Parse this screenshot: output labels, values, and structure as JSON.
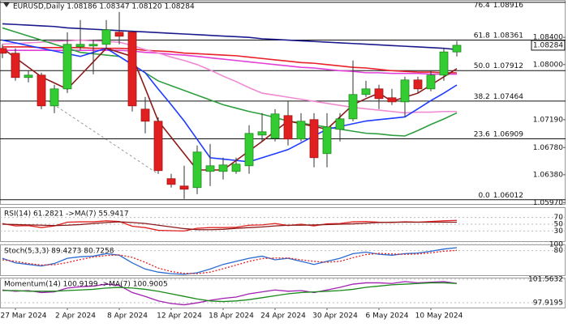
{
  "chart_data": [
    {
      "type": "candlestick",
      "title": "EURUSD,Daily  1.08186 1.08347 1.08120 1.08284",
      "categories": [
        null,
        "27 Mar 2024",
        null,
        null,
        null,
        "2 Apr 2024",
        null,
        null,
        null,
        "8 Apr 2024",
        null,
        null,
        null,
        "12 Apr 2024",
        null,
        null,
        null,
        "18 Apr 2024",
        null,
        null,
        null,
        "24 Apr 2024",
        null,
        null,
        null,
        "30 Apr 2024",
        null,
        null,
        null,
        "6 May 2024",
        null,
        null,
        null,
        "10 May 2024",
        null,
        null
      ],
      "open": [
        1.08238,
        1.08167,
        1.0781,
        1.07845,
        1.07393,
        1.07643,
        1.08262,
        1.08274,
        1.08298,
        1.08476,
        1.08476,
        1.07345,
        1.07167,
        1.06322,
        1.06214,
        1.06191,
        1.06429,
        1.06429,
        1.06429,
        1.06512,
        1.06964,
        1.06917,
        1.0725,
        1.06905,
        1.07191,
        1.06691,
        1.07048,
        1.07202,
        1.0756,
        1.07643,
        1.07512,
        1.07452,
        1.07774,
        1.07643,
        1.07845,
        1.08186
      ],
      "high": [
        1.08298,
        1.08238,
        1.07905,
        1.07881,
        1.07703,
        1.08476,
        1.08655,
        1.08357,
        1.08655,
        1.08774,
        1.085,
        1.07524,
        1.07226,
        1.06393,
        1.06512,
        1.0681,
        1.06833,
        1.06631,
        1.06631,
        1.07107,
        1.07286,
        1.07345,
        1.07464,
        1.07286,
        1.07286,
        1.07286,
        1.07286,
        1.0806,
        1.07762,
        1.07703,
        1.07643,
        1.07822,
        1.07822,
        1.07905,
        1.08238,
        1.08347
      ],
      "low": [
        1.08095,
        1.07762,
        1.07738,
        1.07345,
        1.07286,
        1.07583,
        1.08214,
        1.07857,
        1.08238,
        1.08298,
        1.0731,
        1.06988,
        1.06393,
        1.06191,
        1.06024,
        1.06095,
        1.06214,
        1.0631,
        1.06393,
        1.06393,
        1.06869,
        1.06869,
        1.0681,
        1.06869,
        1.06488,
        1.06488,
        1.06869,
        1.07167,
        1.07524,
        1.07345,
        1.07405,
        1.07226,
        1.07583,
        1.07607,
        1.07762,
        1.0812
      ],
      "close": [
        1.08167,
        1.0781,
        1.07845,
        1.07393,
        1.07643,
        1.08298,
        1.08298,
        1.08298,
        1.08512,
        1.08417,
        1.07393,
        1.07167,
        1.06441,
        1.06238,
        1.06167,
        1.06714,
        1.06512,
        1.06524,
        1.06536,
        1.06988,
        1.07012,
        1.07274,
        1.06905,
        1.07167,
        1.06631,
        1.07083,
        1.07202,
        1.0756,
        1.07643,
        1.075,
        1.07452,
        1.07774,
        1.07643,
        1.07845,
        1.08186,
        1.08284
      ],
      "up_color": "#33cc33",
      "down_color": "#e02020",
      "series": [
        {
          "color": "#1a1a8c",
          "values": [
            1.086,
            1.0859,
            1.0858,
            1.0857,
            1.0856,
            1.0854,
            1.0853,
            1.0852,
            1.0851,
            1.085,
            1.0849,
            1.0848,
            1.0847,
            1.0846,
            1.0845,
            1.0844,
            1.0843,
            1.0842,
            1.0841,
            1.084,
            1.0838,
            1.0837,
            1.0836,
            1.0835,
            1.0834,
            1.0833,
            1.0832,
            1.0831,
            1.083,
            1.0829,
            1.0828,
            1.0827,
            1.0826,
            1.0825,
            1.0824,
            1.0822
          ]
        },
        {
          "color": "#e8202a",
          "values": [
            1.0826,
            1.0826,
            1.0826,
            1.0825,
            1.0825,
            1.0825,
            1.0825,
            1.0824,
            1.0824,
            1.0824,
            1.0823,
            1.0821,
            1.082,
            1.0819,
            1.0817,
            1.0816,
            1.0815,
            1.0814,
            1.0813,
            1.0811,
            1.0809,
            1.0807,
            1.0805,
            1.0803,
            1.0802,
            1.08,
            1.0798,
            1.0796,
            1.0795,
            1.0793,
            1.0791,
            1.079,
            1.0789,
            1.0789,
            1.0788,
            1.0788
          ]
        },
        {
          "color": "#e040d8",
          "values": [
            1.0821,
            1.0821,
            1.0821,
            1.0821,
            1.0821,
            1.0821,
            1.0821,
            1.0821,
            1.0821,
            1.0821,
            1.082,
            1.0818,
            1.0817,
            1.0815,
            1.0814,
            1.0812,
            1.081,
            1.0808,
            1.0806,
            1.0804,
            1.0802,
            1.08,
            1.0798,
            1.0796,
            1.0795,
            1.0793,
            1.0791,
            1.079,
            1.0788,
            1.0788,
            1.0787,
            1.0787,
            1.0787,
            1.0786,
            1.0786,
            1.0786
          ]
        },
        {
          "color": "#f08ad2",
          "values": [
            1.083,
            1.0831,
            1.0832,
            1.0833,
            1.0834,
            1.0835,
            1.0836,
            1.0835,
            1.0834,
            1.0833,
            1.0828,
            1.0822,
            1.0817,
            1.0811,
            1.0806,
            1.08,
            1.0792,
            1.0783,
            1.0775,
            1.0766,
            1.0758,
            1.0755,
            1.0752,
            1.0749,
            1.0746,
            1.0743,
            1.074,
            1.0737,
            1.0735,
            1.0733,
            1.0731,
            1.0729,
            1.073,
            1.073,
            1.0731,
            1.0731
          ]
        },
        {
          "color": "#2e9e3e",
          "values": [
            1.0854,
            1.0848,
            1.0842,
            1.0836,
            1.083,
            1.0824,
            1.0818,
            1.0816,
            1.0814,
            1.0812,
            1.08,
            1.0788,
            1.0776,
            1.0769,
            1.0762,
            1.0755,
            1.0748,
            1.0741,
            1.0736,
            1.0731,
            1.0727,
            1.0722,
            1.0717,
            1.0714,
            1.0711,
            1.0708,
            1.0705,
            1.0702,
            1.0699,
            1.0698,
            1.0696,
            1.0695,
            1.0703,
            1.0712,
            1.072,
            1.0729
          ]
        },
        {
          "color": "#1e3cff",
          "values": [
            1.0836,
            1.0832,
            1.0828,
            1.0824,
            1.082,
            1.0816,
            1.0812,
            1.0818,
            1.0824,
            1.0812,
            1.08,
            1.0788,
            1.0764,
            1.0741,
            1.0717,
            1.069,
            1.0663,
            1.0661,
            1.0659,
            1.0657,
            1.0663,
            1.0669,
            1.0675,
            1.0685,
            1.0695,
            1.0705,
            1.0709,
            1.0713,
            1.0717,
            1.0719,
            1.0721,
            1.0723,
            1.0735,
            1.0747,
            1.0758,
            1.077
          ]
        },
        {
          "color": "#8b1a1a",
          "values": [
            1.0824,
            1.081,
            1.0796,
            1.0782,
            1.0773,
            1.0764,
            1.0784,
            1.0804,
            1.0824,
            1.0818,
            1.0812,
            1.0765,
            1.0717,
            1.0693,
            1.0669,
            1.0645,
            1.0645,
            1.0645,
            1.0659,
            1.0673,
            1.0687,
            1.0702,
            1.0717,
            1.0713,
            1.0709,
            1.0705,
            1.0723,
            1.0741,
            1.075,
            1.0758,
            1.0746,
            1.0752,
            1.0758,
            1.077,
            1.0782,
            1.0794
          ]
        }
      ],
      "ylim": [
        1.0595,
        1.0895
      ],
      "yticks": [
        {
          "value": 1.084,
          "label": "1.08400"
        },
        {
          "value": 1.08,
          "label": "1.08000"
        },
        {
          "value": 1.0719,
          "label": "1.07190"
        },
        {
          "value": 1.0678,
          "label": "1.06780"
        },
        {
          "value": 1.0638,
          "label": "1.06380"
        },
        {
          "value": 1.0597,
          "label": "1.05970"
        }
      ],
      "fib_levels": [
        {
          "level": "76.4",
          "value": 1.08916
        },
        {
          "level": "61.8",
          "value": 1.08361
        },
        {
          "level": "50.0",
          "value": 1.07912
        },
        {
          "level": "38.2",
          "value": 1.07464
        },
        {
          "level": "23.6",
          "value": 1.06909
        },
        {
          "level": "0.0",
          "value": 1.06012
        }
      ],
      "last_price": 1.08284
    },
    {
      "type": "line",
      "title": "RSI(14) 61.2821 ->MA(7) 55.9417",
      "series": [
        {
          "color": "#e02020",
          "values": [
            52,
            45,
            46,
            40,
            45,
            56,
            57,
            57,
            60,
            58,
            44,
            40,
            32,
            31,
            30,
            38,
            40,
            40,
            41,
            47,
            48,
            52,
            46,
            50,
            45,
            51,
            52,
            57,
            58,
            56,
            55,
            57,
            56,
            58,
            60,
            61.2821
          ]
        },
        {
          "color": "#8b1a1a",
          "values": [
            50,
            49,
            48,
            47,
            46,
            47,
            49,
            52,
            55,
            57,
            55,
            52,
            47,
            42,
            37,
            34,
            34,
            35,
            38,
            40,
            42,
            45,
            47,
            47,
            48,
            49,
            50,
            51,
            53,
            55,
            56,
            56,
            56,
            56,
            56,
            55.9417
          ]
        }
      ],
      "ylim": [
        0,
        100
      ],
      "yticks": [
        30,
        50,
        70
      ]
    },
    {
      "type": "line",
      "title": "Stoch(5,3,3) 89.4273 80.7258",
      "series": [
        {
          "color": "#2a6ad0",
          "values": [
            55,
            40,
            35,
            30,
            38,
            55,
            60,
            62,
            70,
            65,
            40,
            20,
            10,
            5,
            3,
            8,
            20,
            35,
            45,
            55,
            62,
            50,
            55,
            45,
            35,
            45,
            55,
            70,
            75,
            68,
            65,
            70,
            72,
            78,
            85,
            89.4273
          ]
        },
        {
          "color": "#e02020",
          "style": "dotted",
          "values": [
            50,
            45,
            38,
            33,
            34,
            41,
            51,
            59,
            64,
            66,
            58,
            42,
            23,
            12,
            6,
            5,
            10,
            21,
            33,
            45,
            54,
            56,
            56,
            50,
            45,
            42,
            45,
            57,
            67,
            71,
            69,
            68,
            69,
            73,
            78,
            80.7258
          ]
        }
      ],
      "ylim": [
        0,
        100
      ],
      "yticks": [
        80,
        100
      ]
    },
    {
      "type": "line",
      "title": "Momentum(14) 100.9199 ->MA(7) 100.9005",
      "series": [
        {
          "color": "#a020b0",
          "values": [
            99.9,
            99.7,
            99.8,
            99.5,
            99.6,
            100.2,
            100.4,
            100.5,
            100.8,
            100.6,
            99.5,
            98.9,
            98.2,
            97.8,
            97.6,
            97.9,
            98.3,
            98.6,
            98.8,
            99.3,
            99.6,
            99.9,
            99.7,
            99.8,
            99.5,
            99.9,
            100.3,
            100.8,
            101.0,
            101.0,
            100.9,
            101.2,
            101.0,
            101.1,
            101.2,
            100.9199
          ]
        },
        {
          "color": "#1a8a1a",
          "values": [
            99.8,
            99.8,
            99.7,
            99.7,
            99.7,
            99.8,
            99.9,
            100.0,
            100.2,
            100.3,
            100.2,
            100.0,
            99.7,
            99.3,
            98.9,
            98.5,
            98.2,
            98.1,
            98.2,
            98.4,
            98.7,
            99.0,
            99.3,
            99.5,
            99.6,
            99.7,
            99.8,
            100.0,
            100.3,
            100.5,
            100.7,
            100.8,
            100.9,
            101.0,
            101.0,
            100.9005
          ]
        }
      ],
      "ylim": [
        97.17,
        101.81
      ],
      "yticks": [
        97.9195,
        101.5632
      ]
    }
  ]
}
